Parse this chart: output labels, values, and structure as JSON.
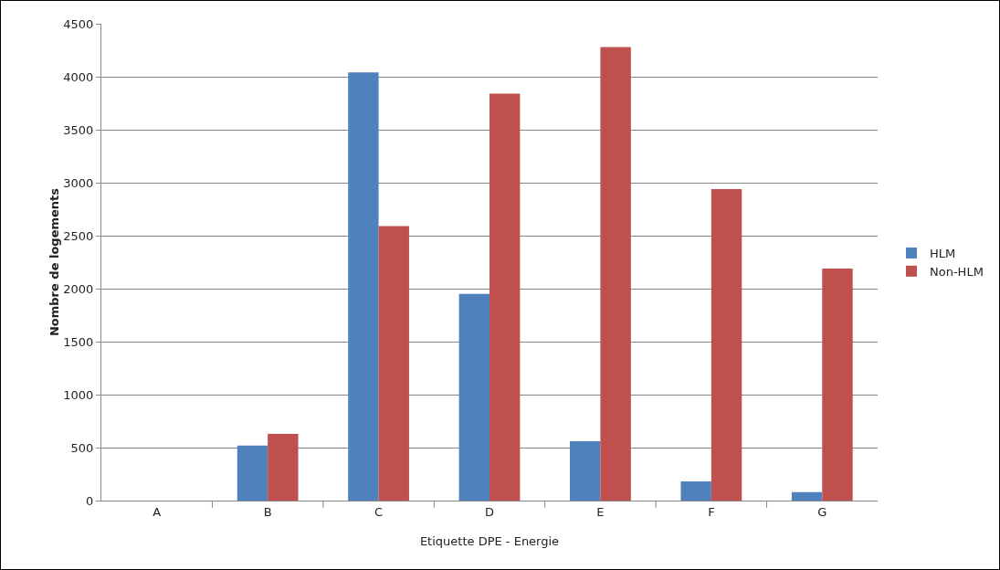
{
  "chart_data": {
    "type": "bar",
    "xlabel": "Etiquette DPE - Energie",
    "ylabel": "Nombre de logements",
    "categories": [
      "A",
      "B",
      "C",
      "D",
      "E",
      "F",
      "G"
    ],
    "series": [
      {
        "name": "HLM",
        "color": "#4f81bd",
        "values": [
          0,
          520,
          4040,
          1950,
          560,
          180,
          80
        ]
      },
      {
        "name": "Non-HLM",
        "color": "#c0504d",
        "values": [
          0,
          630,
          2590,
          3840,
          4280,
          2940,
          2190
        ]
      }
    ],
    "ylim": [
      0,
      4500
    ],
    "yticks": [
      0,
      500,
      1000,
      1500,
      2000,
      2500,
      3000,
      3500,
      4000,
      4500
    ],
    "grid": "y",
    "legend": "right"
  }
}
